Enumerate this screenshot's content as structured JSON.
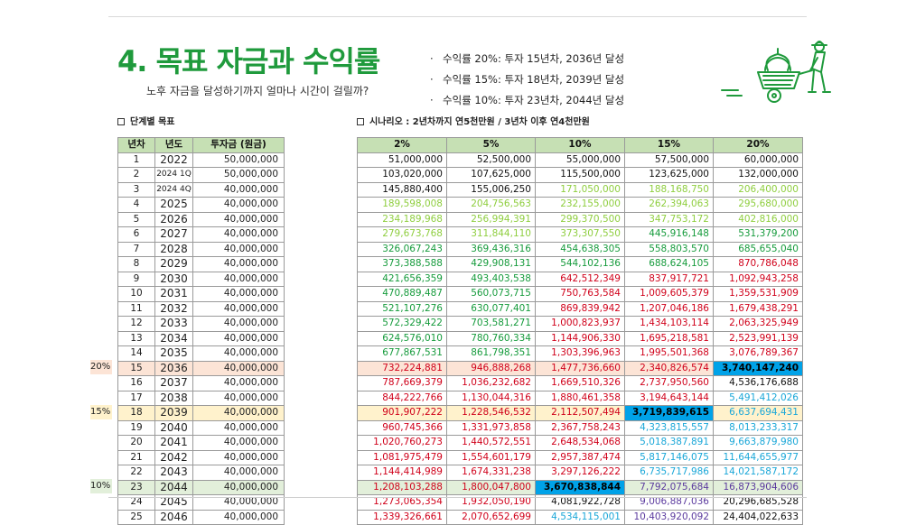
{
  "header": {
    "title": "4. 목표 자금과 수익률",
    "subtitle": "노후 자금을 달성하기까지 얼마나 시간이 걸릴까?",
    "bullets": [
      "수익률 20%: 투자 15년차, 2036년 달성",
      "수익률 15%: 투자 18년차, 2039년 달성",
      "수익률 10%: 투자 23년차, 2044년 달성"
    ]
  },
  "left_section": {
    "label": "단계별 목표",
    "columns": [
      "년차",
      "년도",
      "투자금 (원금)"
    ],
    "rows": [
      [
        "1",
        "2022",
        "50,000,000"
      ],
      [
        "2",
        "2024 1Q",
        "50,000,000"
      ],
      [
        "3",
        "2024 4Q",
        "40,000,000"
      ],
      [
        "4",
        "2025",
        "40,000,000"
      ],
      [
        "5",
        "2026",
        "40,000,000"
      ],
      [
        "6",
        "2027",
        "40,000,000"
      ],
      [
        "7",
        "2028",
        "40,000,000"
      ],
      [
        "8",
        "2029",
        "40,000,000"
      ],
      [
        "9",
        "2030",
        "40,000,000"
      ],
      [
        "10",
        "2031",
        "40,000,000"
      ],
      [
        "11",
        "2032",
        "40,000,000"
      ],
      [
        "12",
        "2033",
        "40,000,000"
      ],
      [
        "13",
        "2034",
        "40,000,000"
      ],
      [
        "14",
        "2035",
        "40,000,000"
      ],
      [
        "15",
        "2036",
        "40,000,000"
      ],
      [
        "16",
        "2037",
        "40,000,000"
      ],
      [
        "17",
        "2038",
        "40,000,000"
      ],
      [
        "18",
        "2039",
        "40,000,000"
      ],
      [
        "19",
        "2040",
        "40,000,000"
      ],
      [
        "20",
        "2041",
        "40,000,000"
      ],
      [
        "21",
        "2042",
        "40,000,000"
      ],
      [
        "22",
        "2043",
        "40,000,000"
      ],
      [
        "23",
        "2044",
        "40,000,000"
      ],
      [
        "24",
        "2045",
        "40,000,000"
      ],
      [
        "25",
        "2046",
        "40,000,000"
      ]
    ]
  },
  "markers": [
    {
      "label": "20%",
      "row": 15
    },
    {
      "label": "15%",
      "row": 18
    },
    {
      "label": "10%",
      "row": 23
    }
  ],
  "right_section": {
    "label": "시나리오 : 2년차까지 연5천만원 / 3년차 이후 연4천만원",
    "columns": [
      "2%",
      "5%",
      "10%",
      "15%",
      "20%"
    ],
    "rows": [
      [
        "51,000,000",
        "52,500,000",
        "55,000,000",
        "57,500,000",
        "60,000,000"
      ],
      [
        "103,020,000",
        "107,625,000",
        "115,500,000",
        "123,625,000",
        "132,000,000"
      ],
      [
        "145,880,400",
        "155,006,250",
        "171,050,000",
        "188,168,750",
        "206,400,000"
      ],
      [
        "189,598,008",
        "204,756,563",
        "232,155,000",
        "262,394,063",
        "295,680,000"
      ],
      [
        "234,189,968",
        "256,994,391",
        "299,370,500",
        "347,753,172",
        "402,816,000"
      ],
      [
        "279,673,768",
        "311,844,110",
        "373,307,550",
        "445,916,148",
        "531,379,200"
      ],
      [
        "326,067,243",
        "369,436,316",
        "454,638,305",
        "558,803,570",
        "685,655,040"
      ],
      [
        "373,388,588",
        "429,908,131",
        "544,102,136",
        "688,624,105",
        "870,786,048"
      ],
      [
        "421,656,359",
        "493,403,538",
        "642,512,349",
        "837,917,721",
        "1,092,943,258"
      ],
      [
        "470,889,487",
        "560,073,715",
        "750,763,584",
        "1,009,605,379",
        "1,359,531,909"
      ],
      [
        "521,107,276",
        "630,077,401",
        "869,839,942",
        "1,207,046,186",
        "1,679,438,291"
      ],
      [
        "572,329,422",
        "703,581,271",
        "1,000,823,937",
        "1,434,103,114",
        "2,063,325,949"
      ],
      [
        "624,576,010",
        "780,760,334",
        "1,144,906,330",
        "1,695,218,581",
        "2,523,991,139"
      ],
      [
        "677,867,531",
        "861,798,351",
        "1,303,396,963",
        "1,995,501,368",
        "3,076,789,367"
      ],
      [
        "732,224,881",
        "946,888,268",
        "1,477,736,660",
        "2,340,826,574",
        "3,740,147,240"
      ],
      [
        "787,669,379",
        "1,036,232,682",
        "1,669,510,326",
        "2,737,950,560",
        "4,536,176,688"
      ],
      [
        "844,222,766",
        "1,130,044,316",
        "1,880,461,358",
        "3,194,643,144",
        "5,491,412,026"
      ],
      [
        "901,907,222",
        "1,228,546,532",
        "2,112,507,494",
        "3,719,839,615",
        "6,637,694,431"
      ],
      [
        "960,745,366",
        "1,331,973,858",
        "2,367,758,243",
        "4,323,815,557",
        "8,013,233,317"
      ],
      [
        "1,020,760,273",
        "1,440,572,551",
        "2,648,534,068",
        "5,018,387,891",
        "9,663,879,980"
      ],
      [
        "1,081,975,479",
        "1,554,601,179",
        "2,957,387,474",
        "5,817,146,075",
        "11,644,655,977"
      ],
      [
        "1,144,414,989",
        "1,674,331,238",
        "3,297,126,222",
        "6,735,717,986",
        "14,021,587,172"
      ],
      [
        "1,208,103,288",
        "1,800,047,800",
        "3,670,838,844",
        "7,792,075,684",
        "16,873,904,606"
      ],
      [
        "1,273,065,354",
        "1,932,050,190",
        "4,081,922,728",
        "9,006,887,036",
        "20,296,685,528"
      ],
      [
        "1,339,326,661",
        "2,070,652,699",
        "4,534,115,001",
        "10,403,920,092",
        "24,404,022,633"
      ]
    ]
  },
  "colors": {
    "title": "#1f9a3c",
    "header_bg": "#c6e0b4",
    "highlight": "#00a2e8"
  }
}
